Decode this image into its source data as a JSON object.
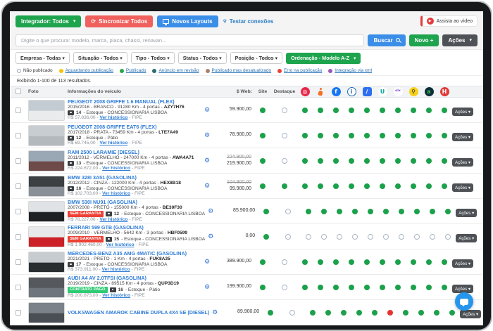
{
  "toolbar": {
    "integrador": "Integrador: Todos",
    "sincronizar": "Sincronizar Todos",
    "novos_layouts": "Novos Layouts",
    "testar_conexoes": "Testar conexões",
    "assista_video": "Assista ao vídeo"
  },
  "search": {
    "placeholder": "Digite o que procura: modelo, marca, placa, chassi, renavan...",
    "buscar": "Buscar",
    "novo": "Novo +",
    "acoes": "Ações"
  },
  "filters": [
    "Empresa - Todas",
    "Situação - Todos",
    "Tipo - Todos",
    "Status - Todos",
    "Posição - Todos"
  ],
  "ordering": "Ordenação - Modelo A-Z",
  "legend": [
    {
      "label": "Não publicado",
      "color": null,
      "link": false
    },
    {
      "label": "Aguardando publicação",
      "color": "#fec106",
      "link": true
    },
    {
      "label": "Publicado",
      "color": "#28a745",
      "link": true
    },
    {
      "label": "Anúncio em revisão",
      "color": "#2e6d6d",
      "link": true
    },
    {
      "label": "Publicado mas desatualizado",
      "color": "#ab806d",
      "link": true
    },
    {
      "label": "Erro na publicação",
      "color": "#e8413c",
      "link": true
    },
    {
      "label": "Integração via xml",
      "color": "#9b59b6",
      "link": true
    }
  ],
  "results_summary": "Exibindo 1-100 de 113 resultados.",
  "table": {
    "headers": {
      "foto": "Foto",
      "info": "Informações do veículo",
      "web": "$ Web:",
      "site": "Site",
      "destaque": "Destaque"
    },
    "actions_label": "Ações",
    "ver_historico": "Ver histórico",
    "fipe": "FIPE",
    "portals": [
      {
        "id": "spiral",
        "glyph": "◎",
        "bg": "#e8274b",
        "fg": "#ffffff",
        "shape": "circle"
      },
      {
        "id": "runner",
        "glyph": "",
        "bg": "",
        "fg": "#f36f24",
        "shape": "person"
      },
      {
        "id": "facebook",
        "glyph": "f",
        "bg": "#1877f2",
        "fg": "#ffffff",
        "shape": "circle"
      },
      {
        "id": "icarros",
        "glyph": "i",
        "bg": "#ffffff",
        "fg": "#1c6bb8",
        "border": "#1c6bb8",
        "shape": "circle"
      },
      {
        "id": "mobiauto",
        "glyph": "/",
        "bg": "#2d6ff0",
        "fg": "#ffffff",
        "shape": "square"
      },
      {
        "id": "usadosbr",
        "glyph": "U",
        "bg": "#ffffff",
        "fg": "#0fa7a0",
        "shape": "circle"
      },
      {
        "id": "olx",
        "glyph": "olx",
        "bg": "#ffffff",
        "fg": "#7a3fd4",
        "shape": "text"
      },
      {
        "id": "chavesnamao",
        "glyph": "⚲",
        "bg": "#f7d117",
        "fg": "#333333",
        "shape": "circle"
      },
      {
        "id": "autoline",
        "glyph": "a",
        "bg": "#0e2d3a",
        "fg": "#39c24e",
        "shape": "circle"
      },
      {
        "id": "hh",
        "glyph": "H",
        "bg": "#e23a3a",
        "fg": "#ffffff",
        "shape": "circle"
      }
    ],
    "rows": [
      {
        "title": "PEUGEOT 2008 GRIFFE 1.6 MANUAL (FLEX)",
        "specs": "2015/2016 - BRANCO - 91280 Km - 4 portas",
        "plate": "AZY7H76",
        "photos": "14",
        "stock": "Estoque - CONCESSIONARIA LISBOA",
        "badge": null,
        "fipe_value": "R$ 57.836,00",
        "price_old": null,
        "price": "59.900,00",
        "site": "g",
        "destaque": "o",
        "portals": [
          "g",
          "g",
          "g",
          "g",
          "g",
          "g",
          "g",
          "g",
          "g",
          "g"
        ],
        "thumb": [
          "#c3ccd3",
          "#e9ebec"
        ]
      },
      {
        "title": "PEUGEOT 2008 GRIFFE EAT6 (FLEX)",
        "specs": "2017/2018 - PRATA - 73459 Km - 4 portas",
        "plate": "LTE7A49",
        "photos": "12",
        "stock": "Estoque - Pátio",
        "badge": null,
        "fipe_value": "R$ 69.745,00",
        "price_old": null,
        "price": "78.900,00",
        "site": "g",
        "destaque": "o",
        "portals": [
          "g",
          "g",
          "g",
          "g",
          "g",
          "g",
          "g",
          "g",
          "g",
          "g"
        ],
        "thumb": [
          "#c8cdd2",
          "#b4b9be"
        ]
      },
      {
        "title": "RAM 2500 LARAMIE (DIESEL)",
        "specs": "2011/2012 - VERMELHO - 247000 Km - 4 portas",
        "plate": "AWA4A71",
        "photos": "13",
        "stock": "Estoque - CONCESSIONARIA LISBOA",
        "badge": null,
        "fipe_value": "R$ 224.672,00",
        "price_old": "224.900,00",
        "price": "219.900,00",
        "site": "g",
        "destaque": "o",
        "portals": [
          "g",
          "g",
          "g",
          "g",
          "g",
          "g",
          "g",
          "g",
          "g",
          "g"
        ],
        "thumb": [
          "#9aa7b5",
          "#6e4a49"
        ]
      },
      {
        "title": "BMW 328I 3A51 (GASOLINA)",
        "specs": "2012/2012 - CINZA - 122000 Km - 4 portas",
        "plate": "HEX8B18",
        "photos": "16",
        "stock": "Estoque - CONCESSIONARIA LISBOA",
        "badge": null,
        "fipe_value": "R$ 102.703,00",
        "price_old": "104.900,00",
        "price": "99.900,00",
        "site": "g",
        "destaque": "g",
        "portals": [
          "g",
          "g",
          "g",
          "g",
          "g",
          "g",
          "g",
          "g",
          "g",
          "g"
        ],
        "thumb": [
          "#3c4043",
          "#8a9097"
        ]
      },
      {
        "title": "BMW 530I NU91 (GASOLINA)",
        "specs": "2007/2008 - PRETO - 155000 Km - 4 portas",
        "plate": "BE30F30",
        "photos": "12",
        "stock": "Estoque - CONCESSIONARIA LISBOA",
        "badge": {
          "text": "SEM GARANTIA",
          "color": "#ee4035"
        },
        "fipe_value": "R$ 78.227,00",
        "price_old": null,
        "price": "85.900,00",
        "site": "g",
        "destaque": "o",
        "portals": [
          "g",
          "g",
          "g",
          "g",
          "g",
          "g",
          "g",
          "g",
          "g",
          "g"
        ],
        "thumb": [
          "#dfe3e6",
          "#1d2124"
        ]
      },
      {
        "title": "FERRARI 599 GTB (GASOLINA)",
        "specs": "2009/2010 - VERMELHO - 5642 Km - 3 portas",
        "plate": "HBF0599",
        "photos": "15",
        "stock": "Estoque - CONCESSIONARIA LISBOA",
        "badge": {
          "text": "SEM GARANTIA",
          "color": "#ee4035"
        },
        "fipe_value": "R$ 1.902.460,00",
        "price_old": null,
        "price": "0,00",
        "site": "g",
        "destaque": "o",
        "portals": [
          "o",
          "o",
          "o",
          "o",
          "o",
          "o",
          "o",
          "o",
          "o",
          "o"
        ],
        "thumb": [
          "#e8e9ea",
          "#cc2128"
        ]
      },
      {
        "title": "MERCEDES-BENZ A35 AMG 4MATIC (GASOLINA)",
        "specs": "2021/2021 - PRETO - 1 Km - 4 portas",
        "plate": "FUK8A35",
        "photos": "17",
        "stock": "Estoque - CONCESSIONARIA LISBOA",
        "badge": null,
        "fipe_value": "R$ 373.911,00",
        "price_old": null,
        "price": "389.900,00",
        "site": "g",
        "destaque": "o",
        "portals": [
          "g",
          "g",
          "g",
          "g",
          "g",
          "g",
          "g",
          "g",
          "g",
          "g"
        ],
        "thumb": [
          "#c7ccd1",
          "#2a2d30"
        ]
      },
      {
        "title": "AUDI A4 AV 2.0TFSI (GASOLINA)",
        "specs": "2019/2019 - CINZA - 89515 Km - 4 portas",
        "plate": "QUP3D19",
        "photos": "16",
        "stock": "Estoque - Pátio",
        "badge": {
          "text": "CONTRATO PAGO",
          "color": "#2dcb73"
        },
        "fipe_value": "R$ 200.873,00",
        "price_old": null,
        "price": "199.900,00",
        "site": "g",
        "destaque": "o",
        "portals": [
          "g",
          "g",
          "g",
          "g",
          "g",
          "g",
          "g",
          "g",
          "g",
          "g"
        ],
        "thumb": [
          "#55595e",
          "#6f757c"
        ]
      },
      {
        "title": "VOLKSWAGEN AMAROK CABINE DUPLA 4X4 SE (DIESEL)",
        "specs": "",
        "plate": "",
        "photos": "",
        "stock": "",
        "badge": null,
        "fipe_value": "",
        "price_old": null,
        "price": "89.900,00",
        "site": "g",
        "destaque": "o",
        "portals": [
          "g",
          "g",
          "g",
          "g",
          "g",
          "r",
          "g",
          "g",
          "g",
          "g"
        ],
        "thumb": [
          "#7b8289",
          "#4a4f55"
        ]
      }
    ]
  },
  "colors": {
    "dot_green": "#1ca14b",
    "dot_red": "#e3342f",
    "accent_green": "#1fa44e",
    "accent_red": "#f0615d",
    "accent_blue": "#3b8ee8",
    "dark_button": "#4e5256"
  }
}
